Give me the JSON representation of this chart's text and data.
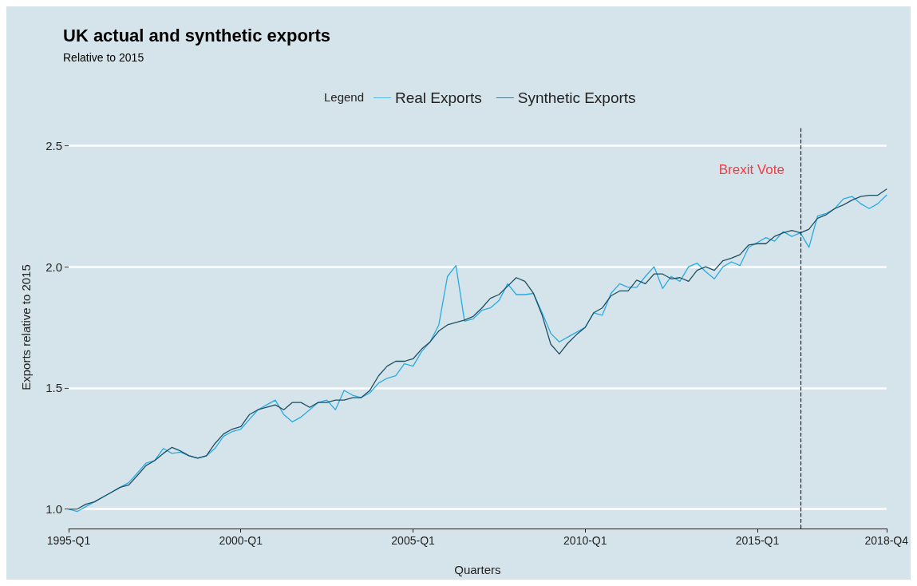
{
  "chart_data": {
    "type": "line",
    "title": "UK actual and synthetic exports",
    "subtitle": "Relative to 2015",
    "xlabel": "Quarters",
    "ylabel": "Exports relative to 2015",
    "legend_title": "Legend",
    "legend": "top",
    "grid": "y",
    "marker": "none",
    "line_style": "solid",
    "x": [
      "1995-01",
      "1995-04",
      "1995-07",
      "1995-10",
      "1996-01",
      "1996-04",
      "1996-07",
      "1996-10",
      "1997-01",
      "1997-04",
      "1997-07",
      "1997-10",
      "1998-01",
      "1998-04",
      "1998-07",
      "1998-10",
      "1999-01",
      "1999-04",
      "1999-07",
      "1999-10",
      "2000-01",
      "2000-04",
      "2000-07",
      "2000-10",
      "2001-01",
      "2001-04",
      "2001-07",
      "2001-10",
      "2002-01",
      "2002-04",
      "2002-07",
      "2002-10",
      "2003-01",
      "2003-04",
      "2003-07",
      "2003-10",
      "2004-01",
      "2004-04",
      "2004-07",
      "2004-10",
      "2005-01",
      "2005-04",
      "2005-07",
      "2005-10",
      "2006-01",
      "2006-04",
      "2006-07",
      "2006-10",
      "2007-01",
      "2007-04",
      "2007-07",
      "2007-10",
      "2008-01",
      "2008-04",
      "2008-07",
      "2008-10",
      "2009-01",
      "2009-04",
      "2009-07",
      "2009-10",
      "2010-01",
      "2010-04",
      "2010-07",
      "2010-10",
      "2011-01",
      "2011-04",
      "2011-07",
      "2011-10",
      "2012-01",
      "2012-04",
      "2012-07",
      "2012-10",
      "2013-01",
      "2013-04",
      "2013-07",
      "2013-10",
      "2014-01",
      "2014-04",
      "2014-07",
      "2014-10",
      "2015-01",
      "2015-04",
      "2015-07",
      "2015-10",
      "2016-01",
      "2016-04",
      "2016-07",
      "2016-10",
      "2017-01",
      "2017-04",
      "2017-07",
      "2017-10",
      "2018-01",
      "2018-04",
      "2018-07",
      "2018-10"
    ],
    "xlim": [
      "1995-01",
      "2018-10"
    ],
    "xticks": [
      {
        "value": "1995-01",
        "label": "1995-Q1"
      },
      {
        "value": "2000-01",
        "label": "2000-Q1"
      },
      {
        "value": "2005-01",
        "label": "2005-Q1"
      },
      {
        "value": "2010-01",
        "label": "2010-Q1"
      },
      {
        "value": "2015-01",
        "label": "2015-Q1"
      },
      {
        "value": "2018-10",
        "label": "2018-Q4"
      }
    ],
    "ylim": [
      0.92,
      2.58
    ],
    "yticks": [
      {
        "value": 1,
        "label": "1.0"
      },
      1.5,
      {
        "value": 2,
        "label": "2.0"
      },
      2.5
    ],
    "ref_lines": [
      {
        "axis": "x",
        "value": "2016-04",
        "color": "#222222",
        "line_style": "dashed"
      }
    ],
    "annotations": [
      {
        "text": "Brexit Vote",
        "x": "2016-04",
        "y": 2.4
      }
    ],
    "series": [
      {
        "name": "Real Exports",
        "color": "#29abe2",
        "values": [
          1.0,
          0.99,
          1.01,
          1.03,
          1.05,
          1.07,
          1.09,
          1.11,
          1.15,
          1.19,
          1.2,
          1.25,
          1.23,
          1.235,
          1.22,
          1.21,
          1.22,
          1.25,
          1.3,
          1.32,
          1.33,
          1.37,
          1.41,
          1.43,
          1.45,
          1.39,
          1.36,
          1.38,
          1.41,
          1.44,
          1.45,
          1.41,
          1.49,
          1.47,
          1.46,
          1.48,
          1.52,
          1.54,
          1.55,
          1.6,
          1.59,
          1.65,
          1.69,
          1.76,
          1.96,
          2.005,
          1.775,
          1.785,
          1.82,
          1.83,
          1.86,
          1.93,
          1.885,
          1.885,
          1.89,
          1.81,
          1.725,
          1.69,
          1.71,
          1.73,
          1.75,
          1.81,
          1.8,
          1.89,
          1.93,
          1.915,
          1.915,
          1.96,
          2.0,
          1.91,
          1.96,
          1.94,
          2.0,
          2.015,
          1.98,
          1.95,
          2.0,
          2.02,
          2.005,
          2.08,
          2.1,
          2.12,
          2.105,
          2.145,
          2.125,
          2.14,
          2.08,
          2.21,
          2.22,
          2.24,
          2.28,
          2.29,
          2.26,
          2.24,
          2.26,
          2.295
        ]
      },
      {
        "name": "Synthetic Exports",
        "color": "#1d4f63",
        "values": [
          1.0,
          1.0,
          1.02,
          1.03,
          1.05,
          1.07,
          1.09,
          1.1,
          1.14,
          1.18,
          1.2,
          1.23,
          1.255,
          1.24,
          1.22,
          1.21,
          1.22,
          1.27,
          1.31,
          1.33,
          1.34,
          1.39,
          1.41,
          1.42,
          1.43,
          1.41,
          1.44,
          1.44,
          1.42,
          1.44,
          1.44,
          1.45,
          1.45,
          1.46,
          1.46,
          1.49,
          1.55,
          1.59,
          1.61,
          1.61,
          1.62,
          1.66,
          1.69,
          1.735,
          1.76,
          1.77,
          1.78,
          1.795,
          1.83,
          1.87,
          1.885,
          1.92,
          1.955,
          1.94,
          1.89,
          1.8,
          1.68,
          1.64,
          1.685,
          1.72,
          1.75,
          1.81,
          1.83,
          1.88,
          1.9,
          1.9,
          1.945,
          1.93,
          1.97,
          1.97,
          1.95,
          1.955,
          1.94,
          1.985,
          2.0,
          1.985,
          2.025,
          2.035,
          2.05,
          2.09,
          2.095,
          2.095,
          2.125,
          2.14,
          2.15,
          2.14,
          2.155,
          2.2,
          2.215,
          2.24,
          2.255,
          2.275,
          2.29,
          2.295,
          2.295,
          2.32
        ]
      }
    ]
  }
}
